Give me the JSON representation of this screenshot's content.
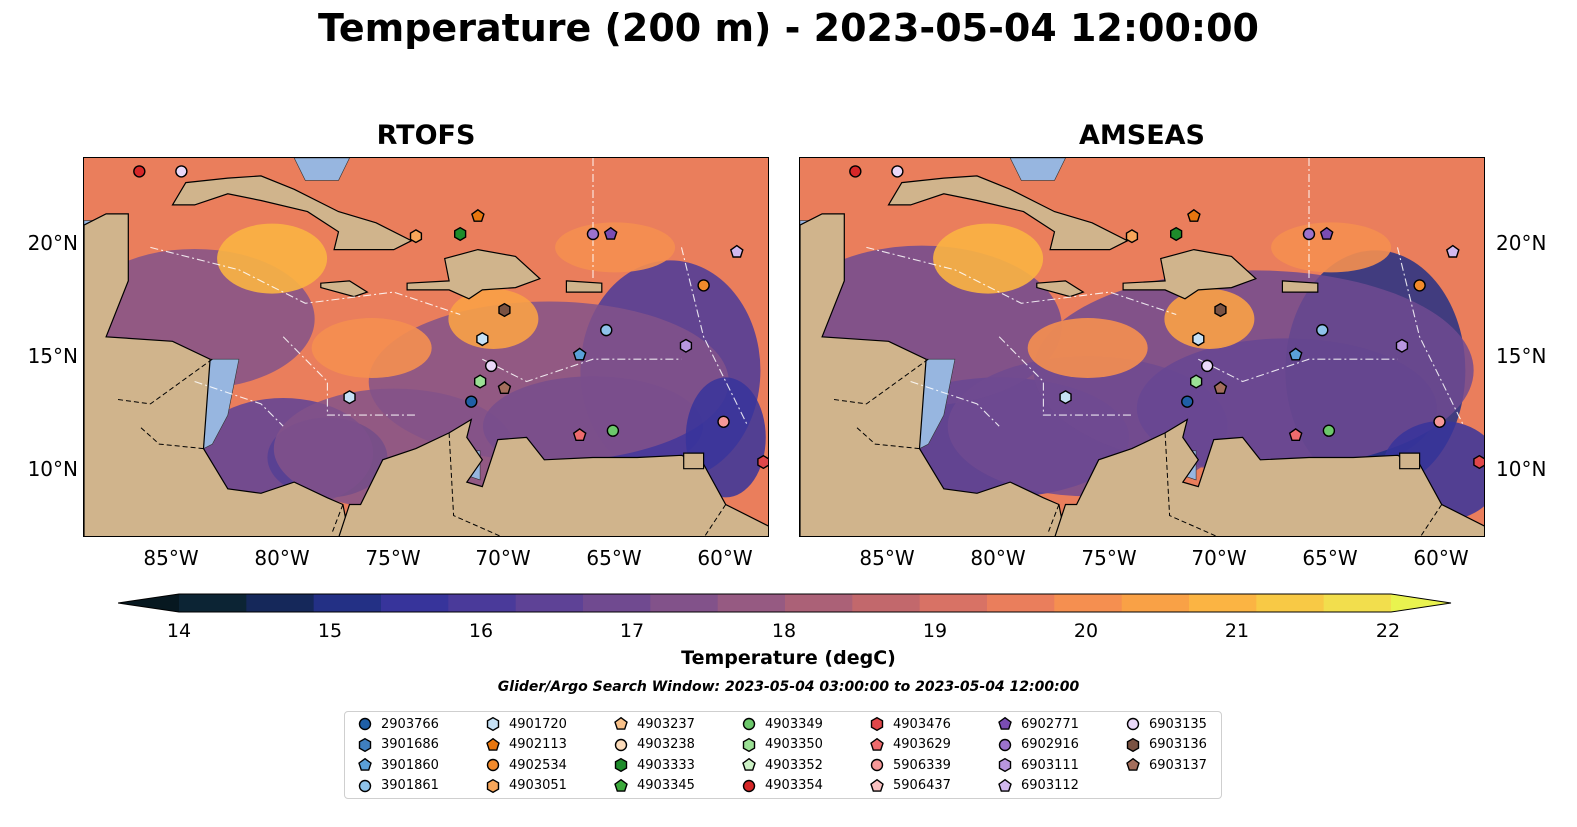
{
  "title": "Temperature (200 m) - 2023-05-04 12:00:00",
  "panels": [
    {
      "title": "RTOFS"
    },
    {
      "title": "AMSEAS"
    }
  ],
  "axes": {
    "lat_labels": [
      "20°N",
      "15°N",
      "10°N"
    ],
    "lon_labels": [
      "85°W",
      "80°W",
      "75°W",
      "70°W",
      "65°W",
      "60°W"
    ],
    "lon_range": [
      -89,
      -58
    ],
    "lat_range": [
      7,
      24
    ]
  },
  "colorbar": {
    "label": "Temperature (degC)",
    "ticks": [
      "14",
      "15",
      "16",
      "17",
      "18",
      "19",
      "20",
      "21",
      "22"
    ],
    "range": [
      14,
      22
    ],
    "step": 0.5,
    "extend": "both",
    "colors": [
      "#0c2434",
      "#15285a",
      "#233085",
      "#37349b",
      "#4a3a9a",
      "#5e4296",
      "#704a90",
      "#82528a",
      "#965a82",
      "#ab6177",
      "#c2686c",
      "#d87265",
      "#ea7e5c",
      "#f58f50",
      "#f9a146",
      "#fbb443",
      "#f8c945",
      "#f2de4d"
    ],
    "over_color": "#e9f34f",
    "under_color": "#071820"
  },
  "search_window": "Glider/Argo Search Window: 2023-05-04 03:00:00 to 2023-05-04 12:00:00",
  "colors": {
    "land": "#d0b48c",
    "water": "#97b6e0"
  },
  "legend": [
    {
      "id": "2903766",
      "marker": "circle",
      "color": "#1f5fa6"
    },
    {
      "id": "3901686",
      "marker": "hexagon",
      "color": "#3f7fc0"
    },
    {
      "id": "3901860",
      "marker": "pentagon",
      "color": "#5aa0d8"
    },
    {
      "id": "3901861",
      "marker": "circle",
      "color": "#8fc3ea"
    },
    {
      "id": "4901720",
      "marker": "hexagon",
      "color": "#c6e1f5"
    },
    {
      "id": "4902113",
      "marker": "pentagon",
      "color": "#e8760e"
    },
    {
      "id": "4902534",
      "marker": "circle",
      "color": "#f28a2b"
    },
    {
      "id": "4903051",
      "marker": "hexagon",
      "color": "#f7a65a"
    },
    {
      "id": "4903237",
      "marker": "pentagon",
      "color": "#f9c189"
    },
    {
      "id": "4903238",
      "marker": "circle",
      "color": "#fddcbb"
    },
    {
      "id": "4903333",
      "marker": "hexagon",
      "color": "#1e8c2b"
    },
    {
      "id": "4903345",
      "marker": "pentagon",
      "color": "#3caa3c"
    },
    {
      "id": "4903349",
      "marker": "circle",
      "color": "#6cc86b"
    },
    {
      "id": "4903350",
      "marker": "hexagon",
      "color": "#9be095"
    },
    {
      "id": "4903352",
      "marker": "pentagon",
      "color": "#cdf2c6"
    },
    {
      "id": "4903354",
      "marker": "circle",
      "color": "#d62728"
    },
    {
      "id": "4903476",
      "marker": "hexagon",
      "color": "#e0474a"
    },
    {
      "id": "4903629",
      "marker": "pentagon",
      "color": "#ee6b6d"
    },
    {
      "id": "5906339",
      "marker": "circle",
      "color": "#f59898"
    },
    {
      "id": "5906437",
      "marker": "pentagon",
      "color": "#fac2c2"
    },
    {
      "id": "6902771",
      "marker": "pentagon",
      "color": "#7a4db3"
    },
    {
      "id": "6902916",
      "marker": "circle",
      "color": "#9c72cc"
    },
    {
      "id": "6903111",
      "marker": "hexagon",
      "color": "#b896df"
    },
    {
      "id": "6903112",
      "marker": "pentagon",
      "color": "#d2b9ef"
    },
    {
      "id": "6903135",
      "marker": "circle",
      "color": "#ead8f8"
    },
    {
      "id": "6903136",
      "marker": "hexagon",
      "color": "#7a5242"
    },
    {
      "id": "6903137",
      "marker": "pentagon",
      "color": "#a46e5c"
    }
  ],
  "floats": [
    {
      "id": "4903354",
      "lon": -86.5,
      "lat": 23.4
    },
    {
      "id": "6903135",
      "lon": -84.6,
      "lat": 23.4
    },
    {
      "id": "4903051",
      "lon": -74.0,
      "lat": 20.5
    },
    {
      "id": "4903333",
      "lon": -72.0,
      "lat": 20.6
    },
    {
      "id": "4902113",
      "lon": -71.2,
      "lat": 21.4
    },
    {
      "id": "6902916",
      "lon": -66.0,
      "lat": 20.6
    },
    {
      "id": "6902771",
      "lon": -65.2,
      "lat": 20.6
    },
    {
      "id": "6903112",
      "lon": -59.5,
      "lat": 19.8
    },
    {
      "id": "4902534",
      "lon": -61.0,
      "lat": 18.3
    },
    {
      "id": "6903136",
      "lon": -70.0,
      "lat": 17.2
    },
    {
      "id": "4901720",
      "lon": -71.0,
      "lat": 15.9
    },
    {
      "id": "3901861",
      "lon": -65.4,
      "lat": 16.3
    },
    {
      "id": "3901860",
      "lon": -66.6,
      "lat": 15.2
    },
    {
      "id": "6903111",
      "lon": -61.8,
      "lat": 15.6
    },
    {
      "id": "6903135",
      "lon": -70.6,
      "lat": 14.7
    },
    {
      "id": "4903350",
      "lon": -71.1,
      "lat": 14.0
    },
    {
      "id": "6903137",
      "lon": -70.0,
      "lat": 13.7
    },
    {
      "id": "2903766",
      "lon": -71.5,
      "lat": 13.1
    },
    {
      "id": "4901720",
      "lon": -77.0,
      "lat": 13.3
    },
    {
      "id": "4903629",
      "lon": -66.6,
      "lat": 11.6
    },
    {
      "id": "4903349",
      "lon": -65.1,
      "lat": 11.8
    },
    {
      "id": "5906339",
      "lon": -60.1,
      "lat": 12.2
    },
    {
      "id": "4903476",
      "lon": -58.3,
      "lat": 10.4
    }
  ]
}
